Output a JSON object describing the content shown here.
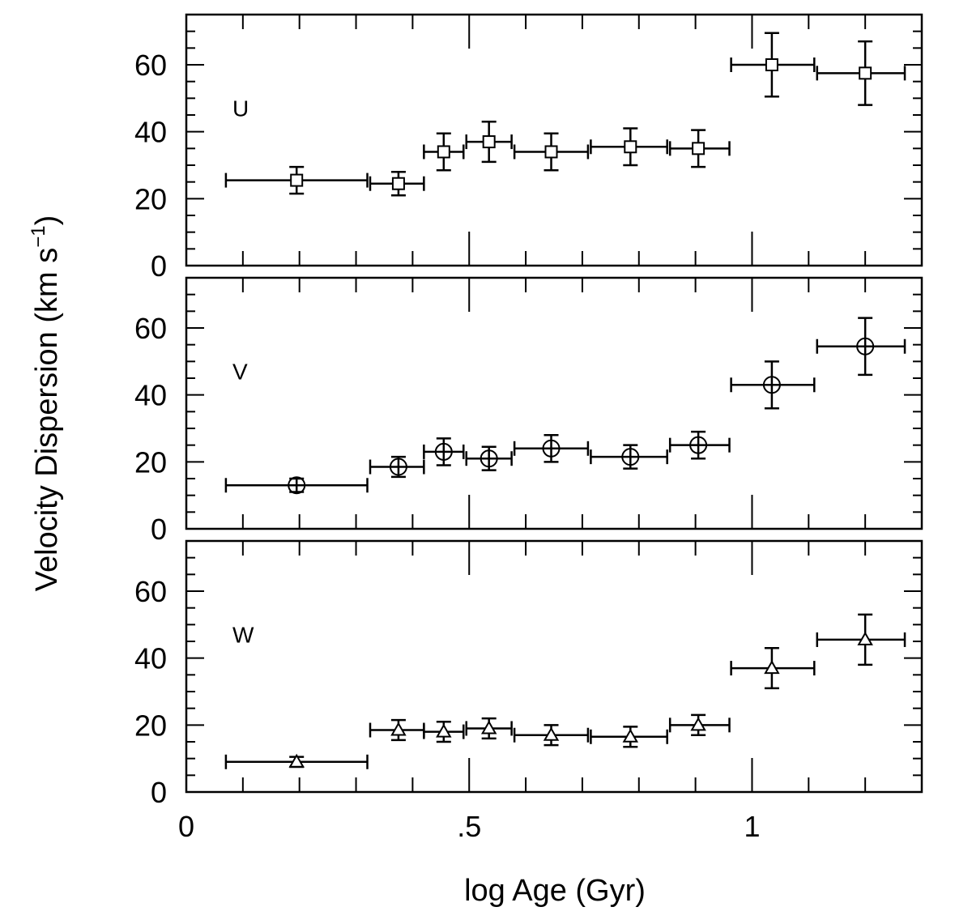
{
  "chart_data": {
    "type": "scatter",
    "ylabel": "Velocity Dispersion (km s",
    "ylabel_sup": "−1",
    "ylabel_close": ")",
    "xlabel": "log Age (Gyr)",
    "xlim": [
      0,
      1.3
    ],
    "ylim": [
      0,
      75
    ],
    "x_tick_labels": [
      {
        "value": 0,
        "label": "0"
      },
      {
        "value": 0.5,
        "label": ".5"
      },
      {
        "value": 1,
        "label": "1"
      }
    ],
    "y_tick_labels": [
      {
        "value": 0,
        "label": "0"
      },
      {
        "value": 20,
        "label": "20"
      },
      {
        "value": 40,
        "label": "40"
      },
      {
        "value": 60,
        "label": "60"
      }
    ],
    "grid": false,
    "legend": "none",
    "panels": [
      {
        "label": "U",
        "marker": "square",
        "points": [
          {
            "x": 0.195,
            "y": 25.5,
            "x_lo": 0.07,
            "x_hi": 0.32,
            "y_err": 4.0
          },
          {
            "x": 0.375,
            "y": 24.5,
            "x_lo": 0.325,
            "x_hi": 0.42,
            "y_err": 3.5
          },
          {
            "x": 0.455,
            "y": 34.0,
            "x_lo": 0.42,
            "x_hi": 0.49,
            "y_err": 5.5
          },
          {
            "x": 0.535,
            "y": 37.0,
            "x_lo": 0.495,
            "x_hi": 0.575,
            "y_err": 6.0
          },
          {
            "x": 0.645,
            "y": 34.0,
            "x_lo": 0.58,
            "x_hi": 0.71,
            "y_err": 5.5
          },
          {
            "x": 0.785,
            "y": 35.5,
            "x_lo": 0.715,
            "x_hi": 0.85,
            "y_err": 5.5
          },
          {
            "x": 0.905,
            "y": 35.0,
            "x_lo": 0.855,
            "x_hi": 0.96,
            "y_err": 5.5
          },
          {
            "x": 1.035,
            "y": 60.0,
            "x_lo": 0.963,
            "x_hi": 1.11,
            "y_err": 9.5
          },
          {
            "x": 1.2,
            "y": 57.5,
            "x_lo": 1.115,
            "x_hi": 1.27,
            "y_err": 9.5
          }
        ]
      },
      {
        "label": "V",
        "marker": "circle",
        "points": [
          {
            "x": 0.195,
            "y": 13.0,
            "x_lo": 0.07,
            "x_hi": 0.32,
            "y_err": 2.0
          },
          {
            "x": 0.375,
            "y": 18.5,
            "x_lo": 0.325,
            "x_hi": 0.42,
            "y_err": 3.0
          },
          {
            "x": 0.455,
            "y": 23.0,
            "x_lo": 0.42,
            "x_hi": 0.49,
            "y_err": 4.0
          },
          {
            "x": 0.535,
            "y": 21.0,
            "x_lo": 0.495,
            "x_hi": 0.575,
            "y_err": 3.5
          },
          {
            "x": 0.645,
            "y": 24.0,
            "x_lo": 0.58,
            "x_hi": 0.71,
            "y_err": 4.0
          },
          {
            "x": 0.785,
            "y": 21.5,
            "x_lo": 0.715,
            "x_hi": 0.85,
            "y_err": 3.5
          },
          {
            "x": 0.905,
            "y": 25.0,
            "x_lo": 0.855,
            "x_hi": 0.96,
            "y_err": 4.0
          },
          {
            "x": 1.035,
            "y": 43.0,
            "x_lo": 0.963,
            "x_hi": 1.11,
            "y_err": 7.0
          },
          {
            "x": 1.2,
            "y": 54.5,
            "x_lo": 1.115,
            "x_hi": 1.27,
            "y_err": 8.5
          }
        ]
      },
      {
        "label": "W",
        "marker": "triangle",
        "points": [
          {
            "x": 0.195,
            "y": 9.0,
            "x_lo": 0.07,
            "x_hi": 0.32,
            "y_err": 1.5
          },
          {
            "x": 0.375,
            "y": 18.5,
            "x_lo": 0.325,
            "x_hi": 0.42,
            "y_err": 3.0
          },
          {
            "x": 0.455,
            "y": 18.0,
            "x_lo": 0.42,
            "x_hi": 0.49,
            "y_err": 3.0
          },
          {
            "x": 0.535,
            "y": 19.0,
            "x_lo": 0.495,
            "x_hi": 0.575,
            "y_err": 3.0
          },
          {
            "x": 0.645,
            "y": 17.0,
            "x_lo": 0.58,
            "x_hi": 0.71,
            "y_err": 3.0
          },
          {
            "x": 0.785,
            "y": 16.5,
            "x_lo": 0.715,
            "x_hi": 0.85,
            "y_err": 3.0
          },
          {
            "x": 0.905,
            "y": 20.0,
            "x_lo": 0.855,
            "x_hi": 0.96,
            "y_err": 3.0
          },
          {
            "x": 1.035,
            "y": 37.0,
            "x_lo": 0.963,
            "x_hi": 1.11,
            "y_err": 6.0
          },
          {
            "x": 1.2,
            "y": 45.5,
            "x_lo": 1.115,
            "x_hi": 1.27,
            "y_err": 7.5
          }
        ]
      }
    ]
  }
}
